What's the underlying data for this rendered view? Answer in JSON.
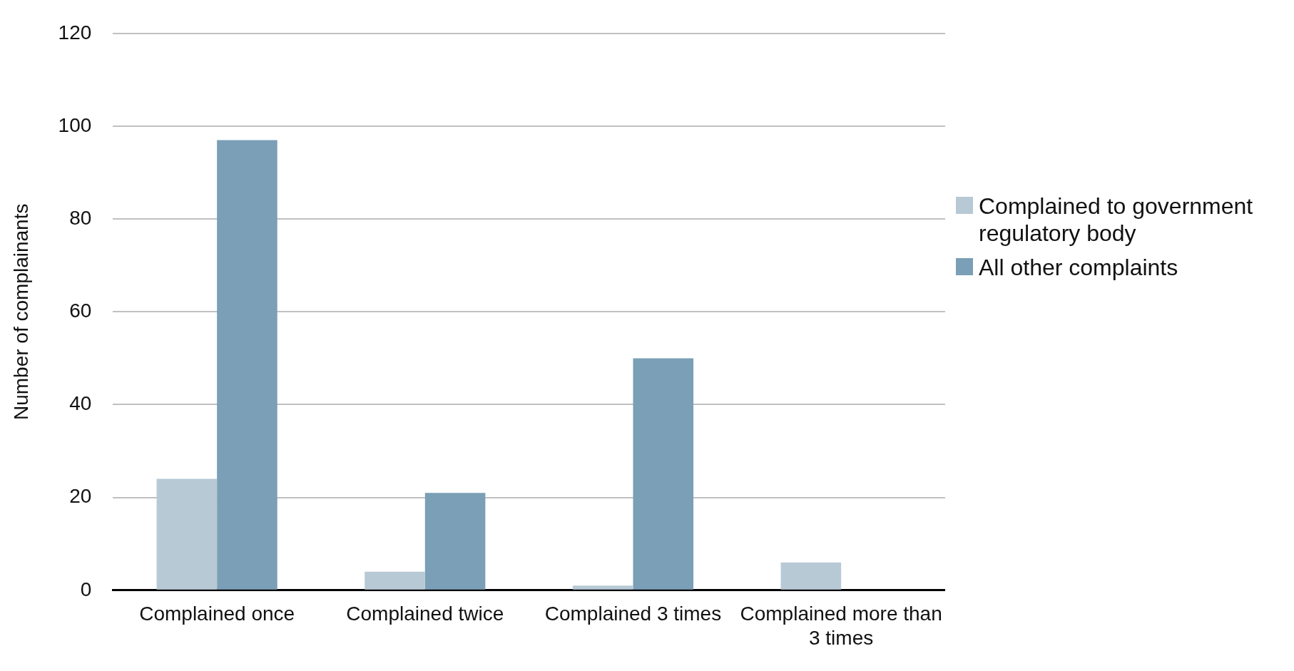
{
  "chart_data": {
    "type": "bar",
    "ylabel": "Number of complainants",
    "categories": [
      "Complained once",
      "Complained twice",
      "Complained 3 times",
      "Complained more than 3 times"
    ],
    "series": [
      {
        "name": "Complained to government regulatory body",
        "color": "#b8c9d6",
        "values": [
          24,
          4,
          1,
          6
        ]
      },
      {
        "name": "All other complaints",
        "color": "#7a9fb6",
        "values": [
          97,
          21,
          50,
          0
        ]
      }
    ],
    "ylim": [
      0,
      120
    ],
    "yticks": [
      0,
      20,
      40,
      60,
      80,
      100,
      120
    ],
    "grid": "y",
    "legend": "right"
  }
}
